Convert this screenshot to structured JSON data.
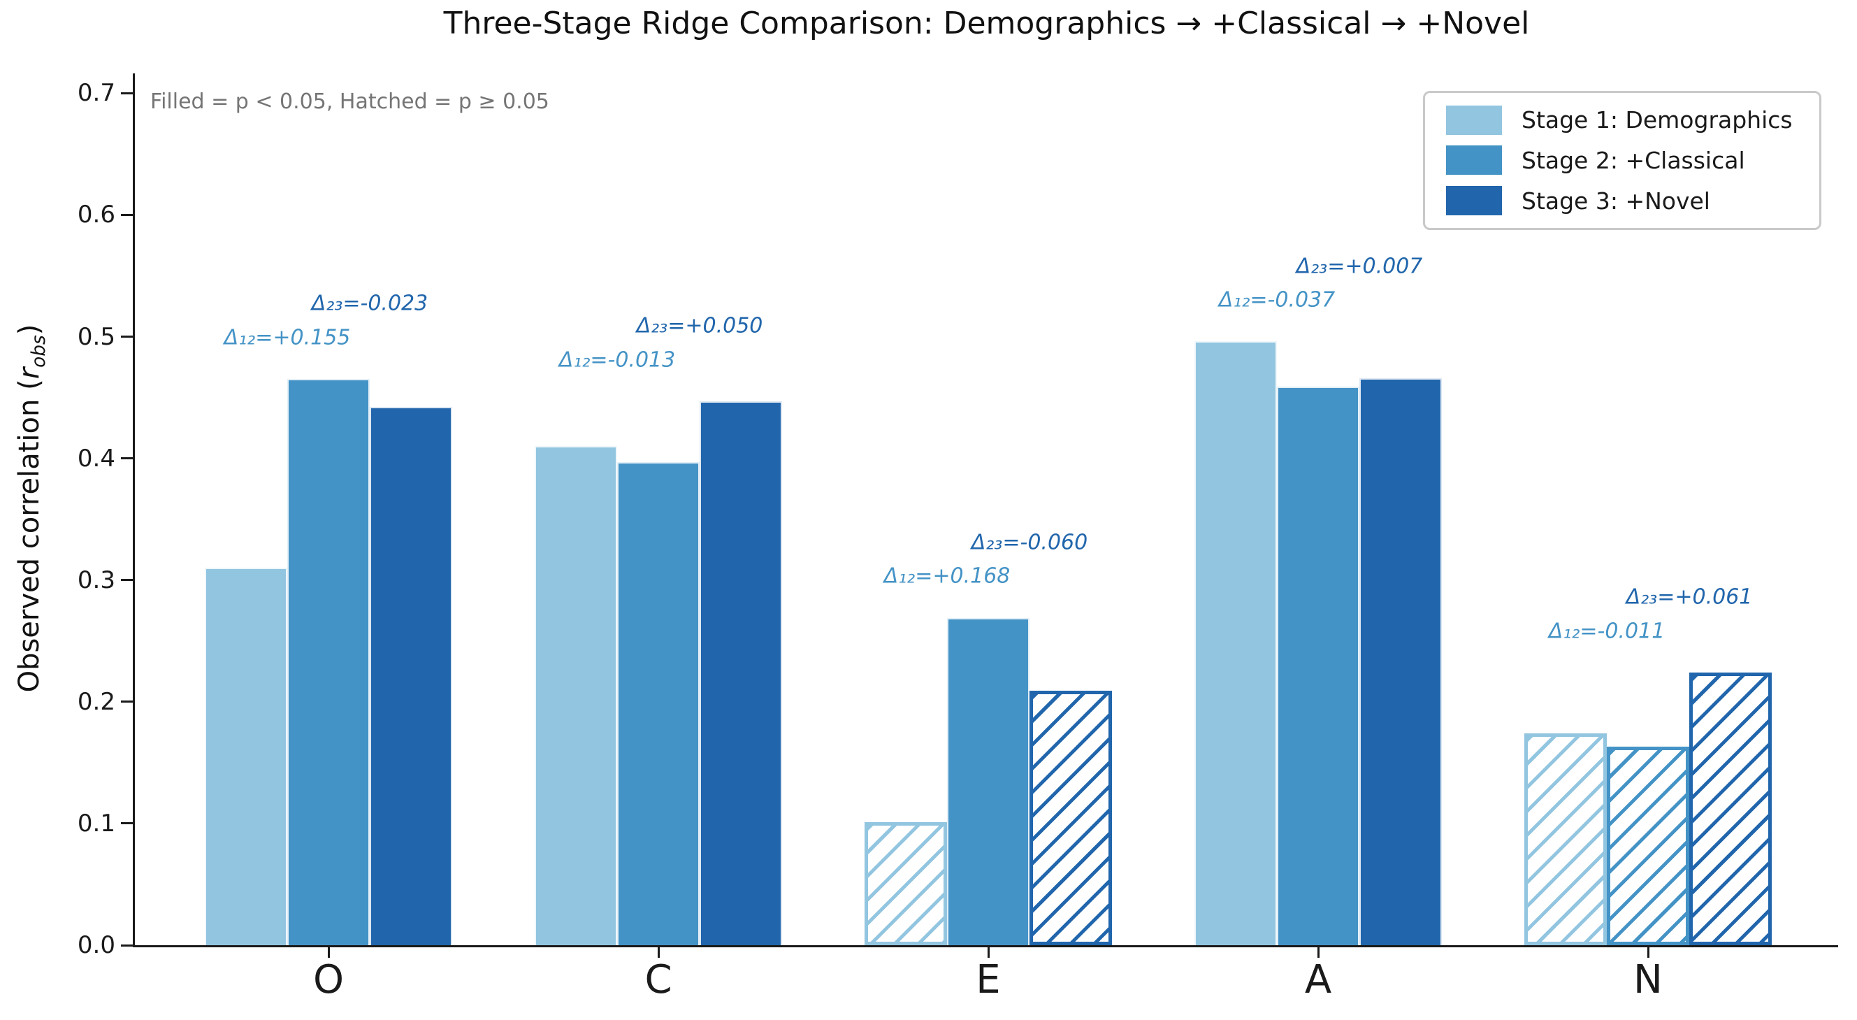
{
  "chart_data": {
    "type": "bar",
    "title": "Three-Stage Ridge Comparison: Demographics → +Classical → +Novel",
    "note": "Filled = p < 0.05, Hatched = p ≥ 0.05",
    "ylabel_parts": {
      "prefix": "Observed correlation (",
      "variable": "r",
      "subscript": "obs",
      "suffix": ")"
    },
    "xlabel": "",
    "categories": [
      "O",
      "C",
      "E",
      "A",
      "N"
    ],
    "series": [
      {
        "name": "Stage 1: Demographics",
        "color": "#92c5e0",
        "values": [
          0.31,
          0.41,
          0.101,
          0.496,
          0.174
        ],
        "significant": [
          true,
          true,
          false,
          true,
          false
        ]
      },
      {
        "name": "Stage 2: +Classical",
        "color": "#4493c6",
        "values": [
          0.465,
          0.397,
          0.269,
          0.459,
          0.163
        ],
        "significant": [
          true,
          true,
          true,
          true,
          false
        ]
      },
      {
        "name": "Stage 3: +Novel",
        "color": "#2166ac",
        "values": [
          0.442,
          0.447,
          0.209,
          0.466,
          0.224
        ],
        "significant": [
          true,
          true,
          false,
          true,
          false
        ]
      }
    ],
    "deltas": {
      "delta12": [
        0.155,
        -0.013,
        0.168,
        -0.037,
        -0.011
      ],
      "delta23": [
        -0.023,
        0.05,
        -0.06,
        0.007,
        0.061
      ]
    },
    "annotations": {
      "delta12": [
        "Δ₁₂=+0.155",
        "Δ₁₂=-0.013",
        "Δ₁₂=+0.168",
        "Δ₁₂=-0.037",
        "Δ₁₂=-0.011"
      ],
      "delta23": [
        "Δ₂₃=-0.023",
        "Δ₂₃=+0.050",
        "Δ₂₃=-0.060",
        "Δ₂₃=+0.007",
        "Δ₂₃=+0.061"
      ]
    },
    "yticks": [
      0.0,
      0.1,
      0.2,
      0.3,
      0.4,
      0.5,
      0.6,
      0.7
    ],
    "ylim": [
      0.0,
      0.716
    ],
    "grid": false,
    "legend_position": "upper right",
    "hatch_rule": {
      "filled": "p < 0.05",
      "hatched": "p ≥ 0.05"
    }
  }
}
